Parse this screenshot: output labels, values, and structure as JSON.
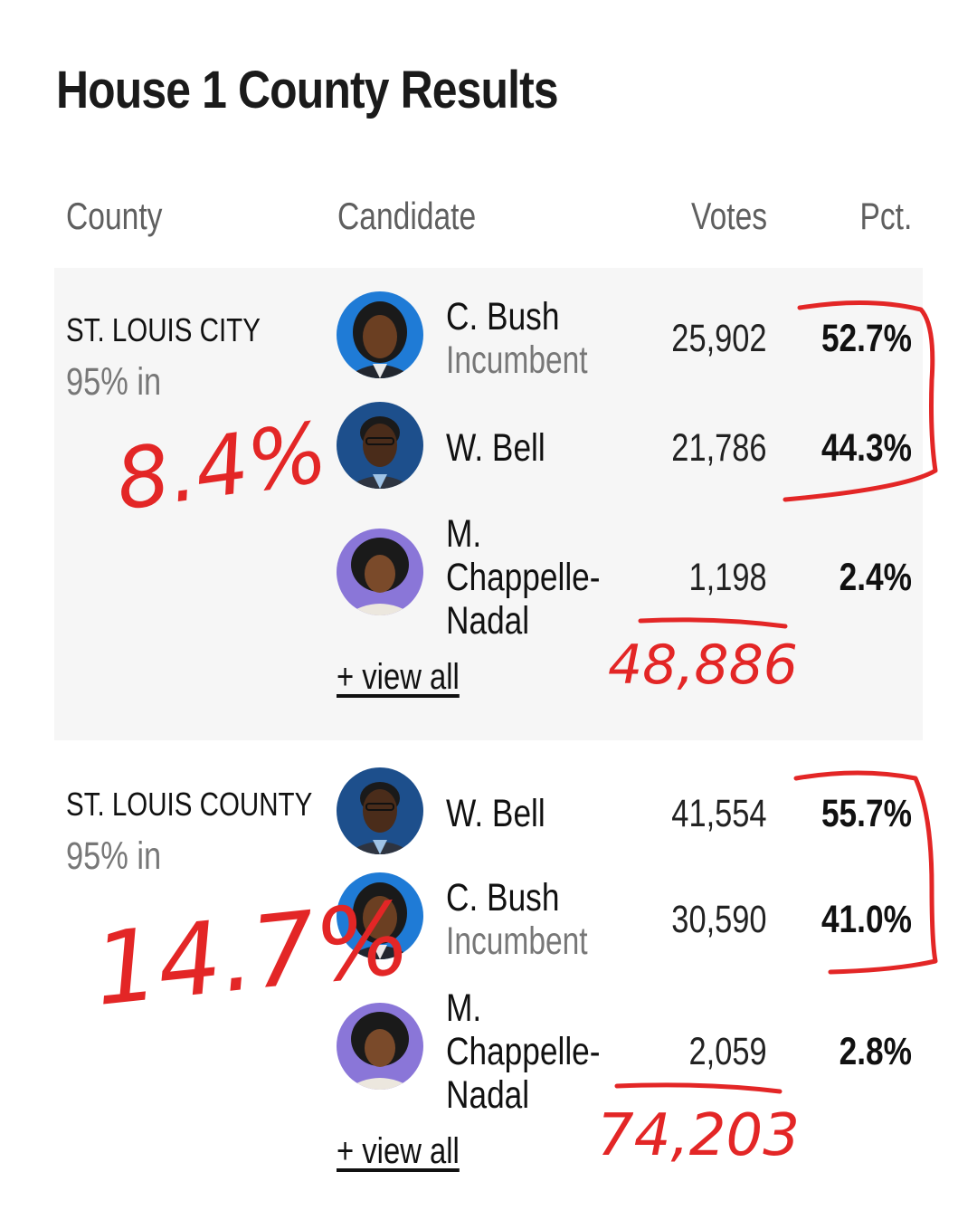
{
  "page": {
    "title": "House 1 County Results"
  },
  "header": {
    "county": "County",
    "candidate": "Candidate",
    "votes": "Votes",
    "pct": "Pct."
  },
  "counties": [
    {
      "name": "ST. LOUIS CITY",
      "reporting": "95% in",
      "view_all": "+ view all",
      "candidates": [
        {
          "name": "C. Bush",
          "sub": "Incumbent",
          "votes": "25,902",
          "pct": "52.7%",
          "avatar": "c-bush-avatar"
        },
        {
          "name": "W. Bell",
          "sub": "",
          "votes": "21,786",
          "pct": "44.3%",
          "avatar": "w-bell-avatar"
        },
        {
          "name_lines": [
            "M.",
            "Chappelle-",
            "Nadal"
          ],
          "votes": "1,198",
          "pct": "2.4%",
          "avatar": "m-chappelle-nadal-avatar"
        }
      ]
    },
    {
      "name": "ST. LOUIS COUNTY",
      "reporting": "95% in",
      "view_all": "+ view all",
      "candidates": [
        {
          "name": "W. Bell",
          "sub": "",
          "votes": "41,554",
          "pct": "55.7%",
          "avatar": "w-bell-avatar"
        },
        {
          "name": "C. Bush",
          "sub": "Incumbent",
          "votes": "30,590",
          "pct": "41.0%",
          "avatar": "c-bush-avatar"
        },
        {
          "name_lines": [
            "M.",
            "Chappelle-",
            "Nadal"
          ],
          "votes": "2,059",
          "pct": "2.8%",
          "avatar": "m-chappelle-nadal-avatar"
        }
      ]
    }
  ],
  "annotations": {
    "color": "#e32626",
    "city_margin": "8.4%",
    "city_total": "48,886",
    "county_margin": "14.7%",
    "county_total": "74,203"
  },
  "colors": {
    "shade": "#f6f6f6",
    "avatar_blue": "#1f7bd6",
    "avatar_dark_blue": "#1d4f8c",
    "avatar_purple": "#8a76d8"
  }
}
